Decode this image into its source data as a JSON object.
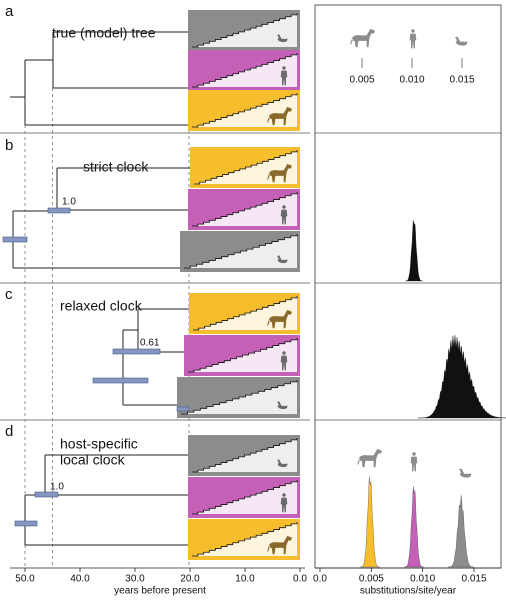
{
  "panels": [
    {
      "letter": "a",
      "title_lines": [
        "true (model) tree"
      ]
    },
    {
      "letter": "b",
      "title_lines": [
        "strict clock"
      ],
      "node_labels": [
        "1.0"
      ]
    },
    {
      "letter": "c",
      "title_lines": [
        "relaxed clock"
      ],
      "node_labels": [
        "0.61"
      ]
    },
    {
      "letter": "d",
      "title_lines": [
        "host-specific",
        "local clock"
      ],
      "node_labels": [
        "1.0"
      ]
    }
  ],
  "rate_labels": [
    "0.005",
    "0.010",
    "0.015"
  ],
  "time_axis": {
    "label": "years before present",
    "ticks": [
      {
        "value": 50,
        "label": "50.0"
      },
      {
        "value": 40,
        "label": "40.0"
      },
      {
        "value": 30,
        "label": "30.0"
      },
      {
        "value": 20,
        "label": "20.0"
      },
      {
        "value": 10,
        "label": "10.0"
      },
      {
        "value": 0,
        "label": "0.0"
      }
    ]
  },
  "rate_axis": {
    "label": "substitutions/site/year",
    "ticks": [
      {
        "value": 0,
        "label": "0.0"
      },
      0.005,
      {
        "value": 0.01,
        "label": "0.010"
      },
      0.015
    ]
  }
}
